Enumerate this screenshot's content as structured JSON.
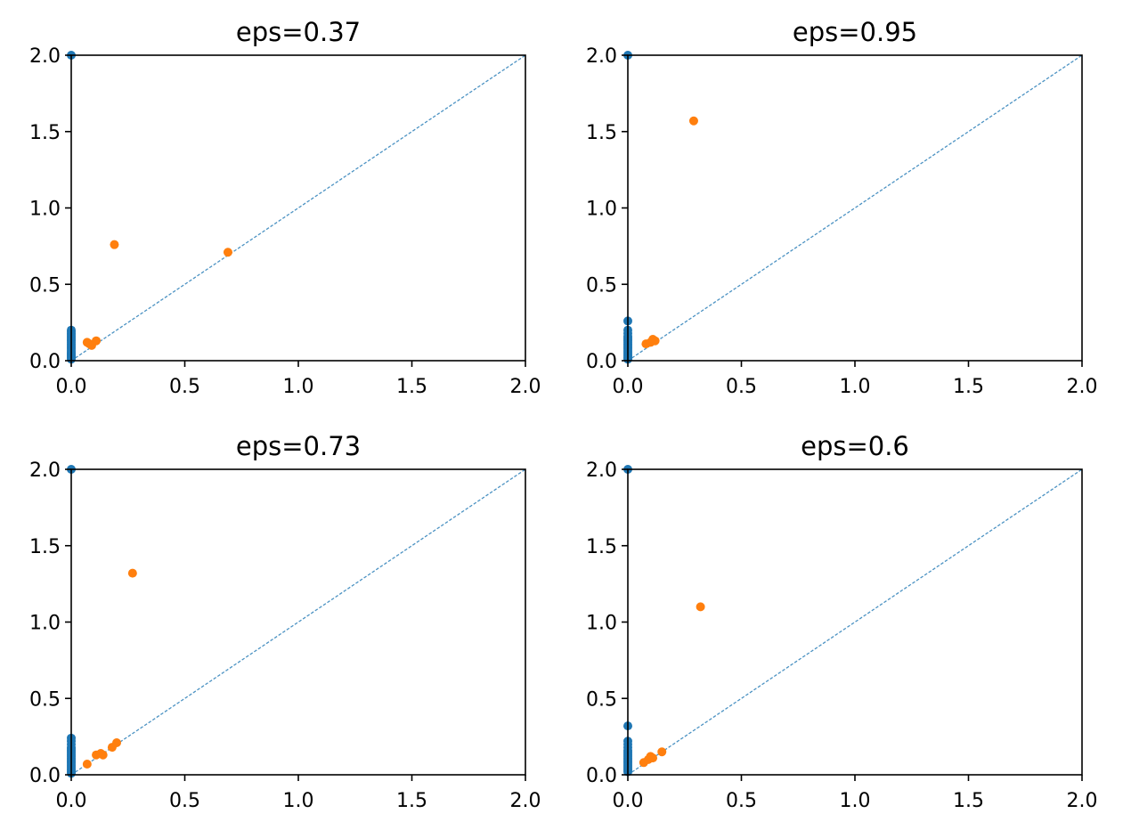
{
  "colors": {
    "h0": "#1f77b4",
    "h1": "#ff7f0e",
    "diagonal": "#1f77b4"
  },
  "chart_data": [
    {
      "type": "scatter",
      "title": "eps=0.37",
      "xlim": [
        0,
        2
      ],
      "ylim": [
        0,
        2
      ],
      "xticks": [
        "0.0",
        "0.5",
        "1.0",
        "1.5",
        "2.0"
      ],
      "yticks": [
        "0.0",
        "0.5",
        "1.0",
        "1.5",
        "2.0"
      ],
      "grid": false,
      "diagonal": true,
      "series": [
        {
          "key": "h0",
          "x": [
            0,
            0,
            0,
            0,
            0,
            0,
            0,
            0,
            0,
            0,
            0,
            0,
            0,
            0,
            0,
            0,
            0,
            0,
            0,
            0,
            0,
            0,
            0,
            0
          ],
          "y": [
            2.0,
            0.2,
            0.19,
            0.18,
            0.17,
            0.16,
            0.15,
            0.14,
            0.13,
            0.12,
            0.11,
            0.1,
            0.09,
            0.08,
            0.07,
            0.06,
            0.05,
            0.045,
            0.04,
            0.035,
            0.03,
            0.025,
            0.02,
            0.01
          ]
        },
        {
          "key": "h1",
          "x": [
            0.19,
            0.69,
            0.07,
            0.09,
            0.11,
            0.08
          ],
          "y": [
            0.76,
            0.71,
            0.12,
            0.1,
            0.13,
            0.11
          ]
        }
      ]
    },
    {
      "type": "scatter",
      "title": "eps=0.95",
      "xlim": [
        0,
        2
      ],
      "ylim": [
        0,
        2
      ],
      "xticks": [
        "0.0",
        "0.5",
        "1.0",
        "1.5",
        "2.0"
      ],
      "yticks": [
        "0.0",
        "0.5",
        "1.0",
        "1.5",
        "2.0"
      ],
      "grid": false,
      "diagonal": true,
      "series": [
        {
          "key": "h0",
          "x": [
            0,
            0,
            0,
            0,
            0,
            0,
            0,
            0,
            0,
            0,
            0,
            0,
            0,
            0,
            0,
            0,
            0,
            0,
            0,
            0,
            0
          ],
          "y": [
            2.0,
            0.26,
            0.2,
            0.18,
            0.16,
            0.15,
            0.14,
            0.13,
            0.12,
            0.11,
            0.1,
            0.09,
            0.08,
            0.07,
            0.06,
            0.05,
            0.04,
            0.03,
            0.02,
            0.015,
            0.01
          ]
        },
        {
          "key": "h1",
          "x": [
            0.29,
            0.08,
            0.1,
            0.11,
            0.12
          ],
          "y": [
            1.57,
            0.11,
            0.12,
            0.14,
            0.13
          ]
        }
      ]
    },
    {
      "type": "scatter",
      "title": "eps=0.73",
      "xlim": [
        0,
        2
      ],
      "ylim": [
        0,
        2
      ],
      "xticks": [
        "0.0",
        "0.5",
        "1.0",
        "1.5",
        "2.0"
      ],
      "yticks": [
        "0.0",
        "0.5",
        "1.0",
        "1.5",
        "2.0"
      ],
      "grid": false,
      "diagonal": true,
      "series": [
        {
          "key": "h0",
          "x": [
            0,
            0,
            0,
            0,
            0,
            0,
            0,
            0,
            0,
            0,
            0,
            0,
            0,
            0,
            0,
            0,
            0,
            0,
            0,
            0,
            0,
            0
          ],
          "y": [
            2.0,
            0.24,
            0.22,
            0.2,
            0.18,
            0.17,
            0.16,
            0.15,
            0.14,
            0.13,
            0.12,
            0.11,
            0.1,
            0.09,
            0.08,
            0.07,
            0.06,
            0.05,
            0.04,
            0.03,
            0.02,
            0.01
          ]
        },
        {
          "key": "h1",
          "x": [
            0.27,
            0.07,
            0.11,
            0.13,
            0.14,
            0.18,
            0.2
          ],
          "y": [
            1.32,
            0.07,
            0.13,
            0.14,
            0.13,
            0.18,
            0.21
          ]
        }
      ]
    },
    {
      "type": "scatter",
      "title": "eps=0.6",
      "xlim": [
        0,
        2
      ],
      "ylim": [
        0,
        2
      ],
      "xticks": [
        "0.0",
        "0.5",
        "1.0",
        "1.5",
        "2.0"
      ],
      "yticks": [
        "0.0",
        "0.5",
        "1.0",
        "1.5",
        "2.0"
      ],
      "grid": false,
      "diagonal": true,
      "series": [
        {
          "key": "h0",
          "x": [
            0,
            0,
            0,
            0,
            0,
            0,
            0,
            0,
            0,
            0,
            0,
            0,
            0,
            0,
            0,
            0,
            0,
            0,
            0,
            0
          ],
          "y": [
            2.0,
            0.32,
            0.22,
            0.2,
            0.18,
            0.16,
            0.15,
            0.14,
            0.13,
            0.12,
            0.11,
            0.1,
            0.09,
            0.08,
            0.07,
            0.06,
            0.05,
            0.04,
            0.03,
            0.02
          ]
        },
        {
          "key": "h1",
          "x": [
            0.32,
            0.07,
            0.09,
            0.1,
            0.11,
            0.15
          ],
          "y": [
            1.1,
            0.08,
            0.1,
            0.12,
            0.11,
            0.15
          ]
        }
      ]
    }
  ]
}
